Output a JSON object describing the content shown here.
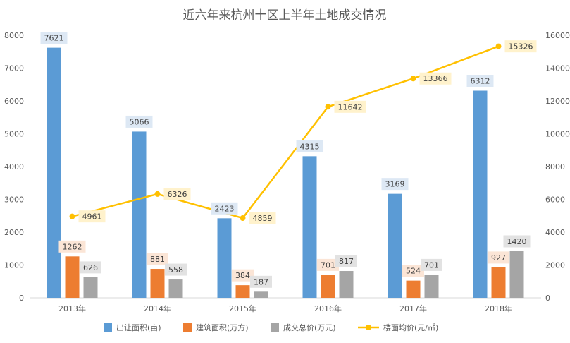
{
  "chart_data": {
    "type": "bar",
    "title": "近六年来杭州十区上半年土地成交情况",
    "categories": [
      "2013年",
      "2014年",
      "2015年",
      "2016年",
      "2017年",
      "2018年"
    ],
    "y_left": {
      "ticks": [
        "0",
        "1000",
        "2000",
        "3000",
        "4000",
        "5000",
        "6000",
        "7000",
        "8000"
      ],
      "range": [
        0,
        8000
      ]
    },
    "y_right": {
      "ticks": [
        "0",
        "2000",
        "4000",
        "6000",
        "8000",
        "10000",
        "12000",
        "14000",
        "16000"
      ],
      "range": [
        0,
        16000
      ]
    },
    "series": [
      {
        "name": "出让面积(亩)",
        "type": "bar",
        "axis": "left",
        "color": "#5b9bd5",
        "label_bg": "#dde8f4",
        "values": [
          7621,
          5066,
          2423,
          4315,
          3169,
          6312
        ]
      },
      {
        "name": "建筑面积(万方)",
        "type": "bar",
        "axis": "left",
        "color": "#ed7d31",
        "label_bg": "#fbe5d6",
        "values": [
          1262,
          881,
          384,
          701,
          524,
          927
        ]
      },
      {
        "name": "成交总价(万元)",
        "type": "bar",
        "axis": "left",
        "color": "#a5a5a5",
        "label_bg": "#e2e2e2",
        "values": [
          626,
          558,
          187,
          817,
          701,
          1420
        ]
      },
      {
        "name": "楼面均价(元/㎡)",
        "type": "line",
        "axis": "right",
        "color": "#ffc000",
        "label_bg": "#fff2cc",
        "values": [
          4961,
          6326,
          4859,
          11642,
          13366,
          15326
        ]
      }
    ],
    "legend": "bottom",
    "grid": false
  }
}
